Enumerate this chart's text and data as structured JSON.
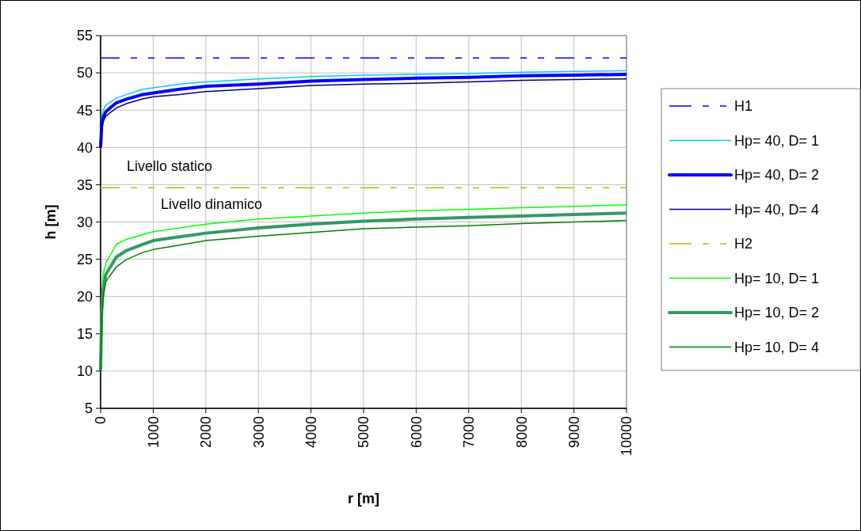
{
  "chart_data": {
    "type": "line",
    "xlabel": "r [m]",
    "ylabel": "h [m]",
    "xlim": [
      0,
      10000
    ],
    "xticks": [
      0,
      1000,
      2000,
      3000,
      4000,
      5000,
      6000,
      7000,
      8000,
      9000,
      10000
    ],
    "ylim": [
      5,
      55
    ],
    "yticks": [
      5,
      10,
      15,
      20,
      25,
      30,
      35,
      40,
      45,
      50,
      55
    ],
    "grid": true,
    "legend": "right",
    "marker": "none",
    "annotations": [
      "Livello statico",
      "Livello dinamico"
    ],
    "series": [
      {
        "name": "H1",
        "color": "#0000ff",
        "line_style": "dashed",
        "x": [
          0,
          10000
        ],
        "values": [
          52,
          52
        ]
      },
      {
        "name": "Hp= 40, D= 1",
        "color": "#00ccff",
        "x": [
          0,
          20,
          50,
          100,
          300,
          500,
          800,
          1000,
          1500,
          2000,
          3000,
          4000,
          5000,
          6000,
          7000,
          8000,
          9000,
          10000
        ],
        "values": [
          40,
          44,
          45,
          45.7,
          46.6,
          47.1,
          47.8,
          48,
          48.5,
          48.8,
          49.2,
          49.5,
          49.7,
          49.8,
          49.9,
          50.1,
          50.2,
          50.3
        ]
      },
      {
        "name": "Hp= 40, D= 2",
        "color": "#0000ff",
        "x": [
          0,
          20,
          50,
          100,
          300,
          500,
          800,
          1000,
          1500,
          2000,
          3000,
          4000,
          5000,
          6000,
          7000,
          8000,
          9000,
          10000
        ],
        "values": [
          40,
          43,
          44,
          44.8,
          46,
          46.5,
          47.1,
          47.3,
          47.8,
          48.2,
          48.5,
          48.9,
          49.1,
          49.3,
          49.4,
          49.6,
          49.7,
          49.8
        ]
      },
      {
        "name": "Hp= 40, D= 4",
        "color": "#000080",
        "x": [
          0,
          20,
          50,
          100,
          300,
          500,
          800,
          1000,
          1500,
          2000,
          3000,
          4000,
          5000,
          6000,
          7000,
          8000,
          9000,
          10000
        ],
        "values": [
          40,
          42.5,
          43.5,
          44.2,
          45.3,
          45.9,
          46.5,
          46.8,
          47.1,
          47.5,
          47.9,
          48.3,
          48.5,
          48.6,
          48.8,
          49,
          49.1,
          49.2
        ]
      },
      {
        "name": "H2",
        "color": "#99cc00",
        "line_style": "dashed",
        "x": [
          0,
          10000
        ],
        "values": [
          34.6,
          34.6
        ]
      },
      {
        "name": "Hp= 10, D= 1",
        "color": "#00ff00",
        "x": [
          0,
          20,
          50,
          100,
          300,
          500,
          800,
          1000,
          1500,
          2000,
          3000,
          4000,
          5000,
          6000,
          7000,
          8000,
          9000,
          10000
        ],
        "values": [
          10,
          20,
          23,
          24.5,
          27,
          27.7,
          28.3,
          28.7,
          29.2,
          29.7,
          30.4,
          30.8,
          31.2,
          31.5,
          31.7,
          31.9,
          32.1,
          32.3
        ]
      },
      {
        "name": "Hp= 10, D= 2",
        "color": "#339966",
        "x": [
          0,
          20,
          50,
          100,
          300,
          500,
          800,
          1000,
          1500,
          2000,
          3000,
          4000,
          5000,
          6000,
          7000,
          8000,
          9000,
          10000
        ],
        "values": [
          10,
          18,
          21,
          23,
          25.3,
          26.2,
          27,
          27.5,
          28,
          28.5,
          29.2,
          29.7,
          30.1,
          30.4,
          30.6,
          30.8,
          31,
          31.2
        ]
      },
      {
        "name": "Hp= 10, D= 4",
        "color": "#008000",
        "x": [
          0,
          20,
          50,
          100,
          300,
          500,
          800,
          1000,
          1500,
          2000,
          3000,
          4000,
          5000,
          6000,
          7000,
          8000,
          9000,
          10000
        ],
        "values": [
          10,
          17,
          20,
          22,
          24,
          25,
          25.9,
          26.3,
          26.9,
          27.5,
          28.1,
          28.6,
          29.1,
          29.3,
          29.5,
          29.8,
          30,
          30.2
        ]
      }
    ]
  }
}
